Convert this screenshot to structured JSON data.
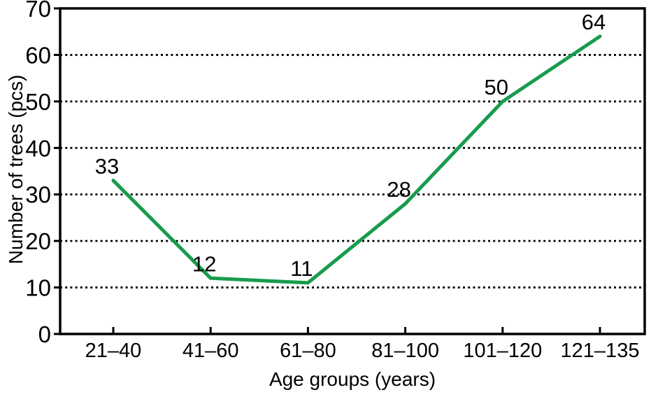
{
  "colors": {
    "line": "#179c4d",
    "axis": "#000000",
    "text": "#000000",
    "background": "#ffffff"
  },
  "chart_data": {
    "type": "line",
    "categories": [
      "21–40",
      "41–60",
      "61–80",
      "81–100",
      "101–120",
      "121–135"
    ],
    "values": [
      33,
      12,
      11,
      28,
      50,
      64
    ],
    "title": "",
    "xlabel": "Age groups (years)",
    "ylabel": "Number of trees (pcs)",
    "ylim": [
      0,
      70
    ],
    "yticks": [
      0,
      10,
      20,
      30,
      40,
      50,
      60,
      70
    ],
    "grid": "horizontal dotted",
    "legend_position": "none",
    "line_color": "#179c4d",
    "point_labels_shown": true
  }
}
